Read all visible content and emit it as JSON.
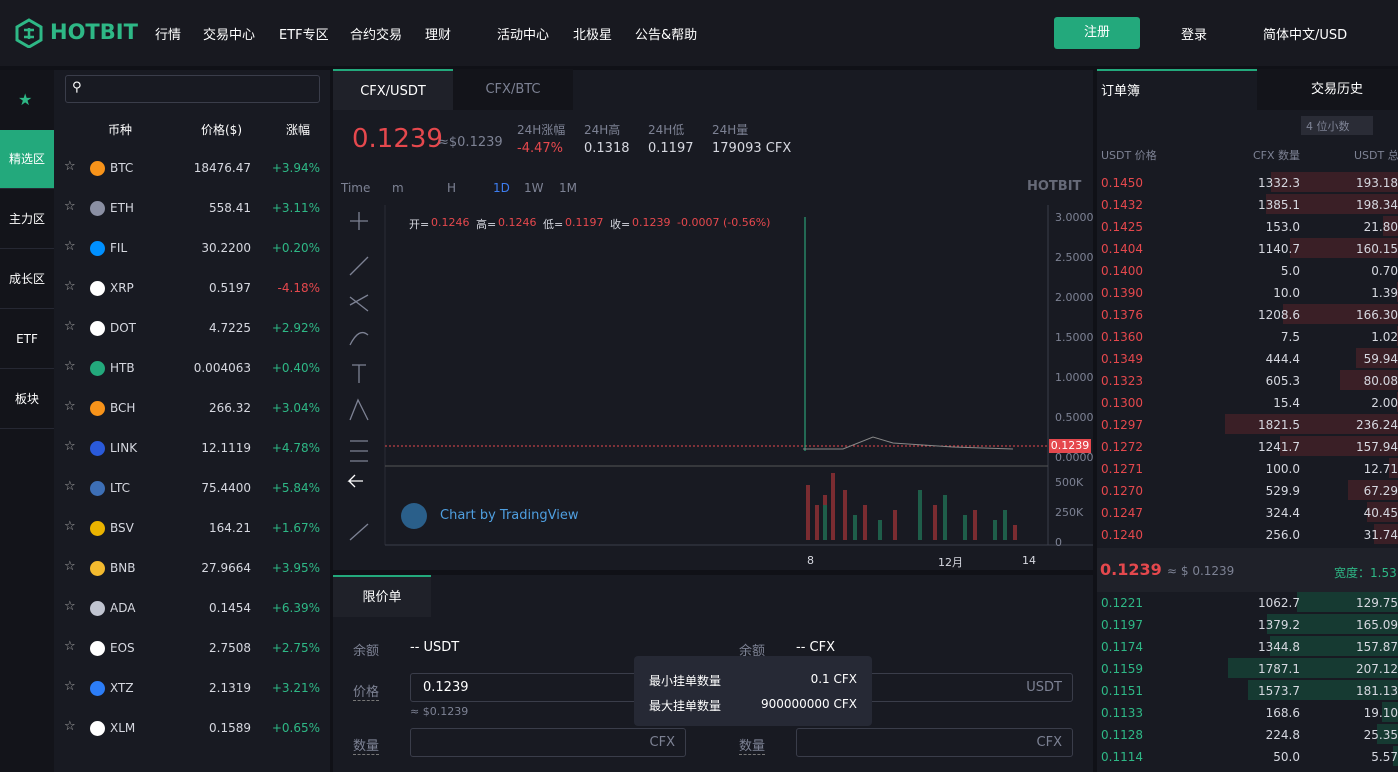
{
  "header": {
    "logo": "HOTBIT",
    "nav": [
      "行情",
      "交易中心",
      "ETF专区",
      "合约交易",
      "理财",
      "活动中心",
      "北极星",
      "公告&帮助"
    ],
    "register": "注册",
    "login": "登录",
    "language": "简体中文/USD"
  },
  "sidebar": {
    "tabs": [
      "精选区",
      "主力区",
      "成长区",
      "ETF",
      "板块"
    ]
  },
  "market": {
    "headers": [
      "币种",
      "价格($)",
      "涨幅"
    ],
    "rows": [
      {
        "coin": "BTC",
        "price": "18476.47",
        "change": "+3.94%",
        "icon_color": "#f7931a"
      },
      {
        "coin": "ETH",
        "price": "558.41",
        "change": "+3.11%",
        "icon_color": "#8a8fa3"
      },
      {
        "coin": "FIL",
        "price": "30.2200",
        "change": "+0.20%",
        "icon_color": "#0090ff"
      },
      {
        "coin": "XRP",
        "price": "0.5197",
        "change": "-4.18%",
        "icon_color": "#ffffff"
      },
      {
        "coin": "DOT",
        "price": "4.7225",
        "change": "+2.92%",
        "icon_color": "#ffffff"
      },
      {
        "coin": "HTB",
        "price": "0.004063",
        "change": "+0.40%",
        "icon_color": "#23a97c"
      },
      {
        "coin": "BCH",
        "price": "266.32",
        "change": "+3.04%",
        "icon_color": "#f7931a"
      },
      {
        "coin": "LINK",
        "price": "12.1119",
        "change": "+4.78%",
        "icon_color": "#2a5ada"
      },
      {
        "coin": "LTC",
        "price": "75.4400",
        "change": "+5.84%",
        "icon_color": "#3d6fb6"
      },
      {
        "coin": "BSV",
        "price": "164.21",
        "change": "+1.67%",
        "icon_color": "#eab300"
      },
      {
        "coin": "BNB",
        "price": "27.9664",
        "change": "+3.95%",
        "icon_color": "#f3ba2f"
      },
      {
        "coin": "ADA",
        "price": "0.1454",
        "change": "+6.39%",
        "icon_color": "#c0c4d0"
      },
      {
        "coin": "EOS",
        "price": "2.7508",
        "change": "+2.75%",
        "icon_color": "#ffffff"
      },
      {
        "coin": "XTZ",
        "price": "2.1319",
        "change": "+3.21%",
        "icon_color": "#2c7df7"
      },
      {
        "coin": "XLM",
        "price": "0.1589",
        "change": "+0.65%",
        "icon_color": "#ffffff"
      }
    ]
  },
  "pair_tabs": [
    "CFX/USDT",
    "CFX/BTC"
  ],
  "ticker": {
    "price": "0.1239",
    "approx": "≈$0.1239",
    "stats": [
      {
        "label": "24H涨幅",
        "value": "-4.47%"
      },
      {
        "label": "24H高",
        "value": "0.1318"
      },
      {
        "label": "24H低",
        "value": "0.1197"
      },
      {
        "label": "24H量",
        "value": "179093 CFX"
      }
    ]
  },
  "chart": {
    "toolbar": [
      "Time",
      "m",
      "H",
      "1D",
      "1W",
      "1M"
    ],
    "watermark": "HOTBIT",
    "ohlc": [
      {
        "label": "开=",
        "value": "0.1246"
      },
      {
        "label": "高=",
        "value": "0.1246"
      },
      {
        "label": "低=",
        "value": "0.1197"
      },
      {
        "label": "收=",
        "value": "0.1239"
      }
    ],
    "ohlc_change": "-0.0007 (-0.56%)",
    "price_axis": [
      "3.0000",
      "2.5000",
      "2.0000",
      "1.5000",
      "1.0000",
      "0.5000",
      "0.0000"
    ],
    "last_price": "0.1239",
    "volume_axis": [
      "500K",
      "250K",
      "0"
    ],
    "x_labels": [
      "8",
      "12月",
      "14"
    ],
    "credit": "Chart by TradingView"
  },
  "order_form": {
    "tab": "限价单",
    "left": {
      "balance_label": "余额",
      "balance": "-- USDT",
      "price_label": "价格",
      "price_value": "0.1239",
      "price_approx": "≈ $0.1239",
      "qty_label": "数量",
      "qty_unit": "CFX"
    },
    "right": {
      "balance_label": "余额",
      "balance": "-- CFX",
      "price_unit": "USDT",
      "qty_label": "数量",
      "qty_unit": "CFX"
    },
    "tooltip": [
      {
        "label": "最小挂单数量",
        "value": "0.1 CFX"
      },
      {
        "label": "最大挂单数量",
        "value": "900000000 CFX"
      }
    ]
  },
  "orderbook": {
    "tabs": [
      "订单簿",
      "交易历史"
    ],
    "precision": "4 位小数",
    "headers": [
      "USDT 价格",
      "CFX 数量",
      "USDT 总"
    ],
    "asks": [
      [
        "0.1450",
        "1332.3",
        "193.18"
      ],
      [
        "0.1432",
        "1385.1",
        "198.34"
      ],
      [
        "0.1425",
        "153.0",
        "21.80"
      ],
      [
        "0.1404",
        "1140.7",
        "160.15"
      ],
      [
        "0.1400",
        "5.0",
        "0.70"
      ],
      [
        "0.1390",
        "10.0",
        "1.39"
      ],
      [
        "0.1376",
        "1208.6",
        "166.30"
      ],
      [
        "0.1360",
        "7.5",
        "1.02"
      ],
      [
        "0.1349",
        "444.4",
        "59.94"
      ],
      [
        "0.1323",
        "605.3",
        "80.08"
      ],
      [
        "0.1300",
        "15.4",
        "2.00"
      ],
      [
        "0.1297",
        "1821.5",
        "236.24"
      ],
      [
        "0.1272",
        "1241.7",
        "157.94"
      ],
      [
        "0.1271",
        "100.0",
        "12.71"
      ],
      [
        "0.1270",
        "529.9",
        "67.29"
      ],
      [
        "0.1247",
        "324.4",
        "40.45"
      ],
      [
        "0.1240",
        "256.0",
        "31.74"
      ]
    ],
    "mid_price": "0.1239",
    "mid_approx": "≈ $ 0.1239",
    "spread": "宽度：1.53",
    "bids": [
      [
        "0.1221",
        "1062.7",
        "129.75"
      ],
      [
        "0.1197",
        "1379.2",
        "165.09"
      ],
      [
        "0.1174",
        "1344.8",
        "157.87"
      ],
      [
        "0.1159",
        "1787.1",
        "207.12"
      ],
      [
        "0.1151",
        "1573.7",
        "181.13"
      ],
      [
        "0.1133",
        "168.6",
        "19.10"
      ],
      [
        "0.1128",
        "224.8",
        "25.35"
      ],
      [
        "0.1114",
        "50.0",
        "5.57"
      ]
    ]
  }
}
